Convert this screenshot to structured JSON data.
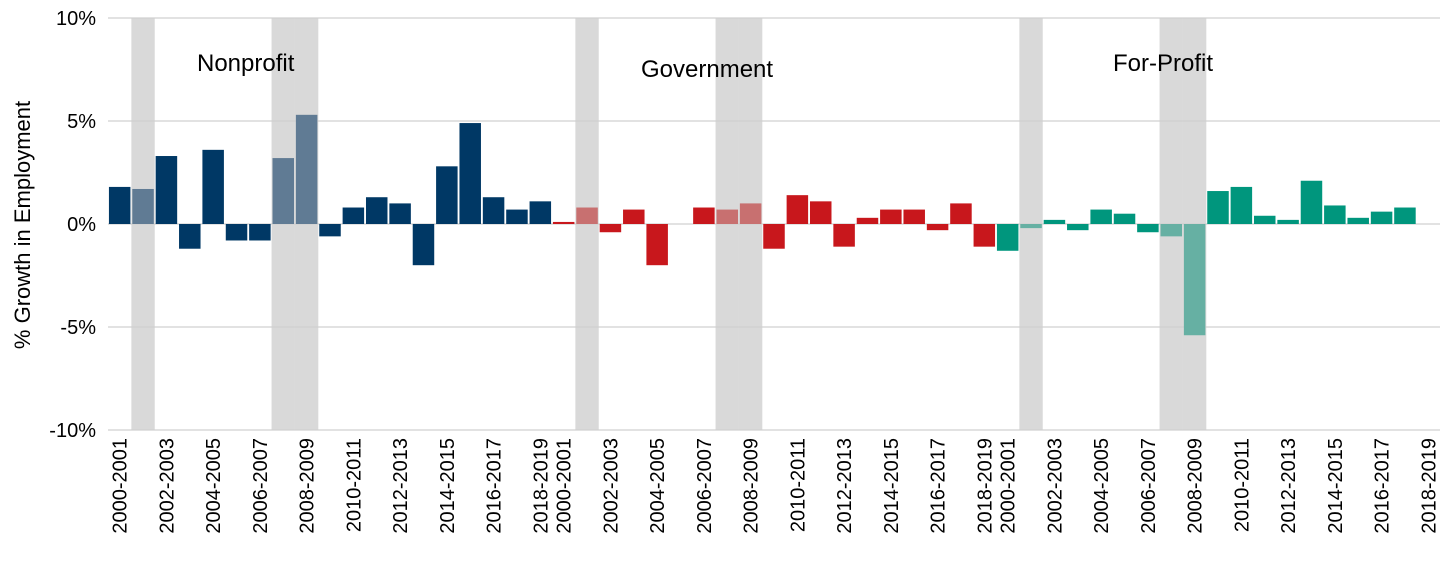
{
  "chart_data": {
    "type": "bar",
    "ylabel": "% Growth in Employment",
    "ylim": [
      -10,
      10
    ],
    "yticks": [
      "10%",
      "5%",
      "0%",
      "-5%",
      "-10%"
    ],
    "ytick_values": [
      10,
      5,
      0,
      -5,
      -10
    ],
    "grid": true,
    "categories": [
      "2000-2001",
      "2001-2002",
      "2002-2003",
      "2003-2004",
      "2004-2005",
      "2005-2006",
      "2006-2007",
      "2007-2008",
      "2008-2009",
      "2009-2010",
      "2010-2011",
      "2011-2012",
      "2012-2013",
      "2013-2014",
      "2014-2015",
      "2015-2016",
      "2016-2017",
      "2017-2018",
      "2018-2019"
    ],
    "tick_labels": [
      "2000-2001",
      "2002-2003",
      "2004-2005",
      "2006-2007",
      "2008-2009",
      "2010-2011",
      "2012-2013",
      "2014-2015",
      "2016-2017",
      "2018-2019"
    ],
    "recession_periods": [
      "2001-2002",
      "2007-2008",
      "2008-2009"
    ],
    "series": [
      {
        "name": "Nonprofit",
        "color": "#003865",
        "recession_color": "#607b94",
        "values": [
          1.8,
          1.7,
          3.3,
          -1.2,
          3.6,
          -0.8,
          -0.8,
          3.2,
          5.3,
          -0.6,
          0.8,
          1.3,
          1.0,
          -2.0,
          2.8,
          4.9,
          1.3,
          0.7,
          1.1
        ]
      },
      {
        "name": "Government",
        "color": "#c8171c",
        "recession_color": "#c87070",
        "values": [
          0.1,
          0.8,
          -0.4,
          0.7,
          -2.0,
          0.0,
          0.8,
          0.7,
          1.0,
          -1.2,
          1.4,
          1.1,
          -1.1,
          0.3,
          0.7,
          0.7,
          -0.3,
          1.0,
          -1.1
        ]
      },
      {
        "name": "For-Profit",
        "color": "#00967d",
        "recession_color": "#66b0a3",
        "values": [
          -1.3,
          -0.2,
          0.2,
          -0.3,
          0.7,
          0.5,
          -0.4,
          -0.6,
          -5.4,
          1.6,
          1.8,
          0.4,
          0.2,
          2.1,
          0.9,
          0.3,
          0.6,
          0.8,
          0.0
        ]
      }
    ]
  }
}
